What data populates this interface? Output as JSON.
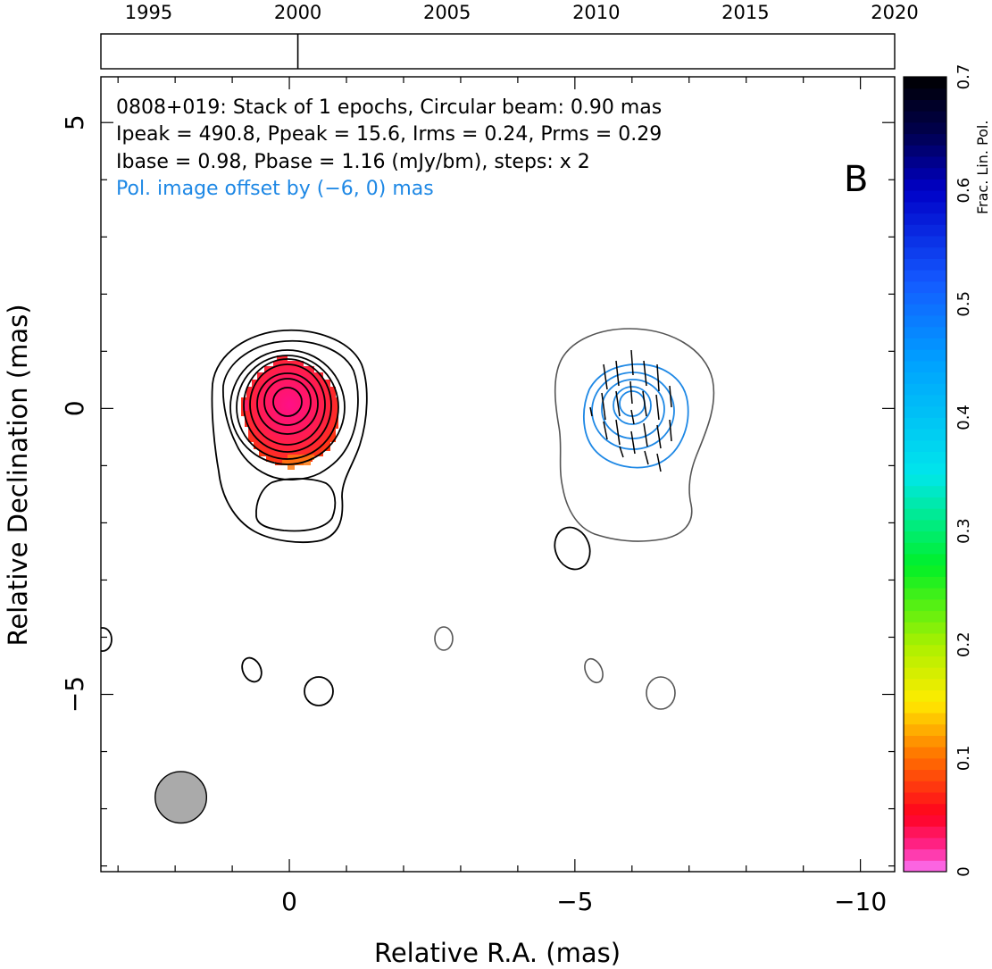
{
  "chart_data": {
    "type": "scatter",
    "source_name": "0808+019",
    "annotation_lines": [
      "0808+019: Stack of 1 epochs, Circular beam: 0.90 mas",
      "Ipeak = 490.8, Ppeak = 15.6, Irms = 0.24, Prms = 0.29",
      "Ibase = 0.98, Pbase = 1.16 (mJy/bm), steps: x 2"
    ],
    "pol_offset_note": "Pol. image offset by (−6, 0) mas",
    "panel_label": "B",
    "xlabel": "Relative R.A. (mas)",
    "ylabel": "Relative Declination (mas)",
    "xlim": [
      3.3,
      -10.6
    ],
    "ylim": [
      -8.1,
      5.8
    ],
    "x_ticks": [
      {
        "value": 0,
        "label": "0"
      },
      {
        "value": -5,
        "label": "−5"
      },
      {
        "value": -10,
        "label": "−10"
      }
    ],
    "y_ticks": [
      {
        "value": 5,
        "label": "5"
      },
      {
        "value": 0,
        "label": "0"
      },
      {
        "value": -5,
        "label": "−5"
      }
    ],
    "timeline": {
      "range": [
        1993.4,
        2020
      ],
      "ticks": [
        "1995",
        "2000",
        "2005",
        "2010",
        "2015",
        "2020"
      ],
      "epochs": [
        2000.0
      ]
    },
    "colorbar": {
      "label": "Frac. Lin. Pol.",
      "range": [
        0,
        0.7
      ],
      "ticks": [
        "0",
        "0.1",
        "0.2",
        "0.3",
        "0.4",
        "0.5",
        "0.6",
        "0.7"
      ]
    },
    "beam_fwhm_mas": 0.9,
    "beam_center": [
      1.9,
      -6.8
    ],
    "intensity_peak": [
      0,
      0
    ],
    "pol_center": [
      -6,
      0
    ],
    "frac_pol_at_core": 0.03,
    "colors": {
      "total_intensity_contours": "#000000",
      "pol_contours": "#1e88e5",
      "shifted_base_contour": "#555555",
      "evpa_ticks": "#000000",
      "beam_fill": "#aaaaaa",
      "pol_note": "#1e88e5"
    }
  }
}
